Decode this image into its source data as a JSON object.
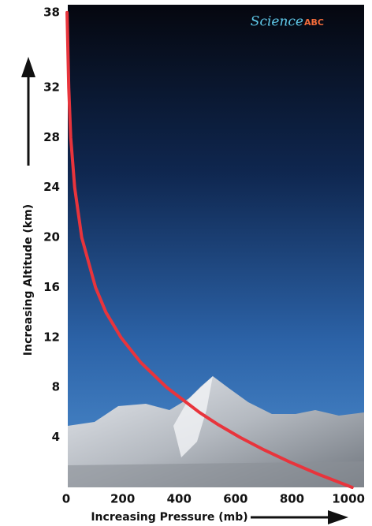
{
  "chart_data": {
    "type": "line",
    "x_label": "Increasing Pressure (mb)",
    "y_label": "Increasing Altitude (km)",
    "logo": [
      "Science",
      "ABC"
    ],
    "x": [
      1013,
      899,
      795,
      701,
      616,
      540,
      472,
      356,
      264,
      194,
      141,
      104,
      55,
      30,
      16,
      9,
      3
    ],
    "values": [
      0,
      1,
      2,
      3,
      4,
      5,
      6,
      8,
      10,
      12,
      14,
      16,
      20,
      24,
      28,
      32,
      38
    ],
    "color": "#e8343c",
    "xlim": [
      0,
      1050
    ],
    "ylim": [
      0,
      38.5
    ],
    "xticks": [
      0,
      200,
      400,
      600,
      800,
      1000
    ],
    "yticks": [
      4,
      8,
      12,
      16,
      20,
      24,
      28,
      32,
      38
    ],
    "grid": false
  }
}
